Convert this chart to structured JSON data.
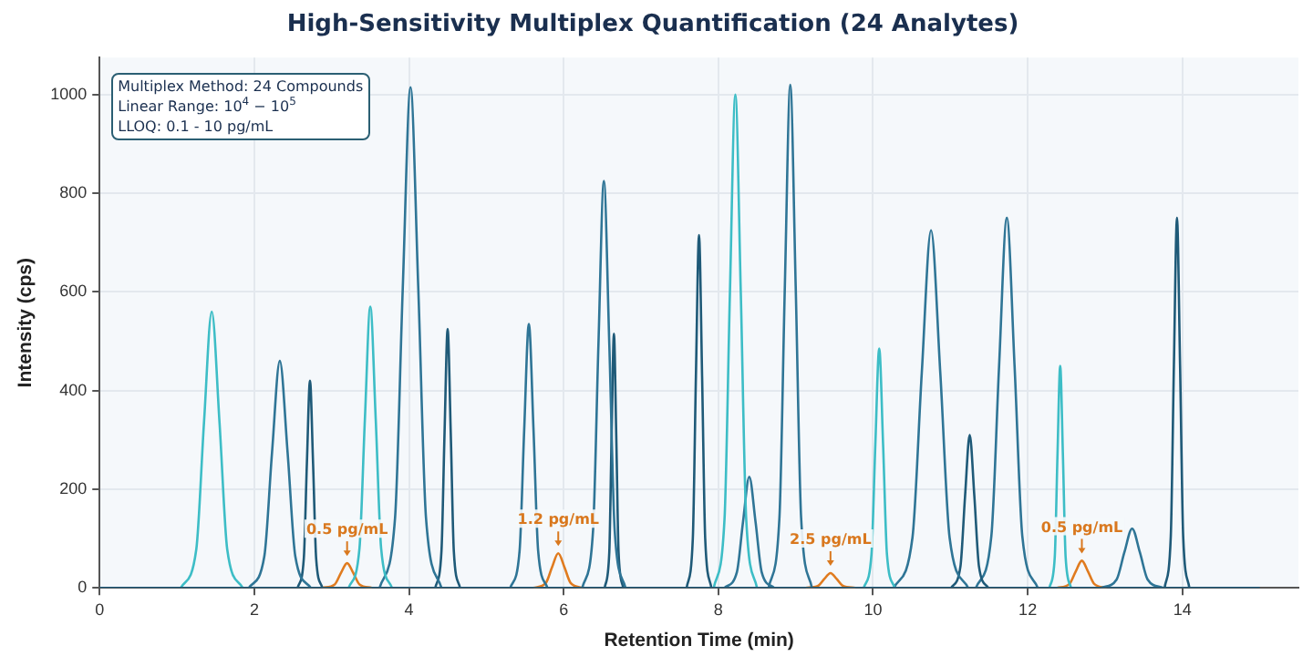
{
  "chart_data": {
    "type": "line",
    "title": "High-Sensitivity Multiplex Quantification (24 Analytes)",
    "xlabel": "Retention Time (min)",
    "ylabel": "Intensity (cps)",
    "xlim": [
      0,
      15.5
    ],
    "ylim": [
      0,
      1075
    ],
    "xticks": [
      0,
      2,
      4,
      6,
      8,
      10,
      12,
      14
    ],
    "yticks": [
      0,
      200,
      400,
      600,
      800,
      1000
    ],
    "grid": true,
    "legend": false,
    "annotations": [
      "Multiplex Method: 24 Compounds\nLinear Range: 10$^{4}$ − 10$^{5}$\nLLOQ: 0.1 - 10 pg/mL",
      {
        "text": "0.5 pg/mL",
        "x": 3.2,
        "y": 50
      },
      {
        "text": "1.2 pg/mL",
        "x": 5.93,
        "y": 70
      },
      {
        "text": "2.5 pg/mL",
        "x": 9.45,
        "y": 30
      },
      {
        "text": "0.5 pg/mL",
        "x": 12.7,
        "y": 55
      }
    ],
    "series": [
      {
        "type": "line",
        "color": "#1f5a78",
        "x": [
          0,
          15
        ],
        "values": [
          0,
          0
        ]
      },
      {
        "type": "line",
        "color": "#3dbdc6",
        "x": [
          1.05,
          1.25,
          1.35,
          1.45,
          1.55,
          1.65,
          1.85
        ],
        "values": [
          0,
          78,
          336,
          560,
          336,
          78,
          0
        ]
      },
      {
        "type": "line",
        "color": "#3dbdc6",
        "x": [
          3.22,
          3.36,
          3.43,
          3.5,
          3.57,
          3.64,
          3.78
        ],
        "values": [
          0,
          80,
          342,
          570,
          342,
          80,
          0
        ]
      },
      {
        "type": "line",
        "color": "#3dbdc6",
        "x": [
          7.94,
          8.08,
          8.15,
          8.22,
          8.29,
          8.36,
          8.5
        ],
        "values": [
          0,
          140,
          600,
          1000,
          600,
          140,
          0
        ]
      },
      {
        "type": "line",
        "color": "#3dbdc6",
        "x": [
          9.88,
          9.98,
          10.03,
          10.08,
          10.13,
          10.18,
          10.28
        ],
        "values": [
          0,
          68,
          291,
          485,
          291,
          68,
          0
        ]
      },
      {
        "type": "line",
        "color": "#3dbdc6",
        "x": [
          12.28,
          12.35,
          12.385,
          12.42,
          12.455,
          12.49,
          12.56
        ],
        "values": [
          0,
          63,
          270,
          450,
          270,
          63,
          0
        ]
      },
      {
        "type": "line",
        "color": "#2f7596",
        "x": [
          1.93,
          2.13,
          2.23,
          2.33,
          2.43,
          2.53,
          2.73
        ],
        "values": [
          0,
          64,
          276,
          460,
          276,
          64,
          0
        ]
      },
      {
        "type": "line",
        "color": "#1f5a78",
        "x": [
          2.56,
          2.64,
          2.68,
          2.72,
          2.76,
          2.8,
          2.88
        ],
        "values": [
          0,
          59,
          252,
          420,
          252,
          59,
          0
        ]
      },
      {
        "type": "line",
        "color": "#2f7596",
        "x": [
          3.62,
          3.82,
          3.92,
          4.02,
          4.12,
          4.22,
          4.42
        ],
        "values": [
          0,
          142,
          609,
          1015,
          609,
          142,
          0
        ]
      },
      {
        "type": "line",
        "color": "#1f5a78",
        "x": [
          4.34,
          4.42,
          4.46,
          4.5,
          4.54,
          4.58,
          4.66
        ],
        "values": [
          0,
          74,
          315,
          525,
          315,
          74,
          0
        ]
      },
      {
        "type": "line",
        "color": "#2f7596",
        "x": [
          5.31,
          5.43,
          5.49,
          5.55,
          5.61,
          5.67,
          5.79
        ],
        "values": [
          0,
          75,
          321,
          535,
          321,
          75,
          0
        ]
      },
      {
        "type": "line",
        "color": "#2f7596",
        "x": [
          6.24,
          6.38,
          6.45,
          6.52,
          6.59,
          6.66,
          6.8
        ],
        "values": [
          0,
          116,
          495,
          825,
          495,
          116,
          0
        ]
      },
      {
        "type": "line",
        "color": "#1f5a78",
        "x": [
          6.53,
          6.59,
          6.62,
          6.65,
          6.68,
          6.71,
          6.77
        ],
        "values": [
          0,
          72,
          309,
          515,
          309,
          72,
          0
        ]
      },
      {
        "type": "line",
        "color": "#1f5a78",
        "x": [
          7.59,
          7.67,
          7.71,
          7.75,
          7.79,
          7.83,
          7.91
        ],
        "values": [
          0,
          100,
          429,
          715,
          429,
          100,
          0
        ]
      },
      {
        "type": "line",
        "color": "#2f7596",
        "x": [
          8.08,
          8.24,
          8.32,
          8.4,
          8.48,
          8.56,
          8.72
        ],
        "values": [
          0,
          32,
          135,
          225,
          135,
          32,
          0
        ]
      },
      {
        "type": "line",
        "color": "#2f7596",
        "x": [
          8.65,
          8.79,
          8.86,
          8.93,
          9.0,
          9.07,
          9.21
        ],
        "values": [
          0,
          143,
          612,
          1020,
          612,
          143,
          0
        ]
      },
      {
        "type": "line",
        "color": "#2f7596",
        "x": [
          10.27,
          10.51,
          10.63,
          10.75,
          10.87,
          10.99,
          11.23
        ],
        "values": [
          0,
          102,
          435,
          725,
          435,
          102,
          0
        ]
      },
      {
        "type": "line",
        "color": "#1f5a78",
        "x": [
          11.01,
          11.13,
          11.19,
          11.25,
          11.31,
          11.37,
          11.49
        ],
        "values": [
          0,
          43,
          186,
          310,
          186,
          43,
          0
        ]
      },
      {
        "type": "line",
        "color": "#2f7596",
        "x": [
          11.33,
          11.53,
          11.63,
          11.73,
          11.83,
          11.93,
          12.13
        ],
        "values": [
          0,
          105,
          450,
          750,
          450,
          105,
          0
        ]
      },
      {
        "type": "line",
        "color": "#2f7596",
        "x": [
          12.95,
          13.15,
          13.25,
          13.35,
          13.45,
          13.55,
          13.75
        ],
        "values": [
          0,
          17,
          72,
          120,
          72,
          17,
          0
        ]
      },
      {
        "type": "line",
        "color": "#1f5a78",
        "x": [
          13.77,
          13.85,
          13.89,
          13.93,
          13.97,
          14.01,
          14.09
        ],
        "values": [
          0,
          105,
          450,
          750,
          450,
          105,
          0
        ]
      },
      {
        "type": "line",
        "color": "#e07b1f",
        "x": [
          2.88,
          3.04,
          3.12,
          3.2,
          3.28,
          3.36,
          3.52
        ],
        "values": [
          0,
          7,
          30,
          50,
          30,
          7,
          0
        ]
      },
      {
        "type": "line",
        "color": "#e07b1f",
        "x": [
          5.61,
          5.77,
          5.85,
          5.93,
          6.01,
          6.09,
          6.25
        ],
        "values": [
          0,
          10,
          42,
          70,
          42,
          10,
          0
        ]
      },
      {
        "type": "line",
        "color": "#e07b1f",
        "x": [
          9.13,
          9.29,
          9.37,
          9.45,
          9.53,
          9.61,
          9.77
        ],
        "values": [
          0,
          4,
          18,
          30,
          18,
          4,
          0
        ]
      },
      {
        "type": "line",
        "color": "#e07b1f",
        "x": [
          12.38,
          12.54,
          12.62,
          12.7,
          12.78,
          12.86,
          13.02
        ],
        "values": [
          0,
          8,
          33,
          55,
          33,
          8,
          0
        ]
      }
    ]
  }
}
